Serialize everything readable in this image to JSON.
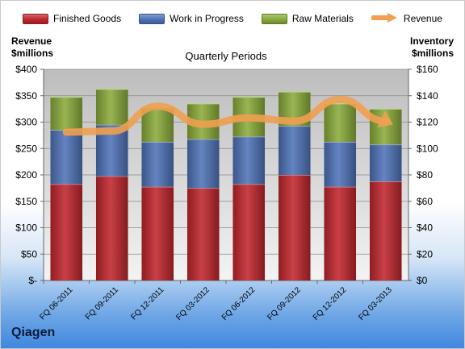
{
  "brand": "Qiagen",
  "chart_data": {
    "type": "bar",
    "title": "Quarterly Periods",
    "left_axis_label": [
      "Revenue",
      "$millions"
    ],
    "right_axis_label": [
      "Inventory",
      "$millions"
    ],
    "categories": [
      "FQ 06-2011",
      "FQ 09-2011",
      "FQ 12-2011",
      "FQ 03-2012",
      "FQ 06-2012",
      "FQ 09-2012",
      "FQ 12-2012",
      "FQ 03-2013"
    ],
    "left_ticks": [
      "$-",
      "$50",
      "$100",
      "$150",
      "$200",
      "$250",
      "$300",
      "$350",
      "$400"
    ],
    "right_ticks": [
      "$0",
      "$20",
      "$40",
      "$60",
      "$80",
      "$100",
      "$120",
      "$140",
      "$160"
    ],
    "ylim_left": [
      0,
      400
    ],
    "ylim_right": [
      0,
      160
    ],
    "stacked": true,
    "series": [
      {
        "name": "Finished Goods",
        "axis": "right",
        "color": "#c0262d",
        "values": [
          73,
          79,
          71,
          70,
          73,
          80,
          71,
          75
        ]
      },
      {
        "name": "Work in Progress",
        "axis": "right",
        "color": "#4f73b8",
        "values": [
          41,
          39,
          34,
          37,
          36,
          37,
          34,
          28
        ]
      },
      {
        "name": "Raw Materials",
        "axis": "right",
        "color": "#8aab3a",
        "values": [
          25,
          27,
          26,
          27,
          30,
          26,
          29,
          27
        ]
      },
      {
        "name": "Revenue",
        "type": "line",
        "axis": "left",
        "color": "#f0a050",
        "values": [
          281,
          283,
          330,
          296,
          308,
          302,
          343,
          302
        ]
      }
    ],
    "grid": true
  }
}
